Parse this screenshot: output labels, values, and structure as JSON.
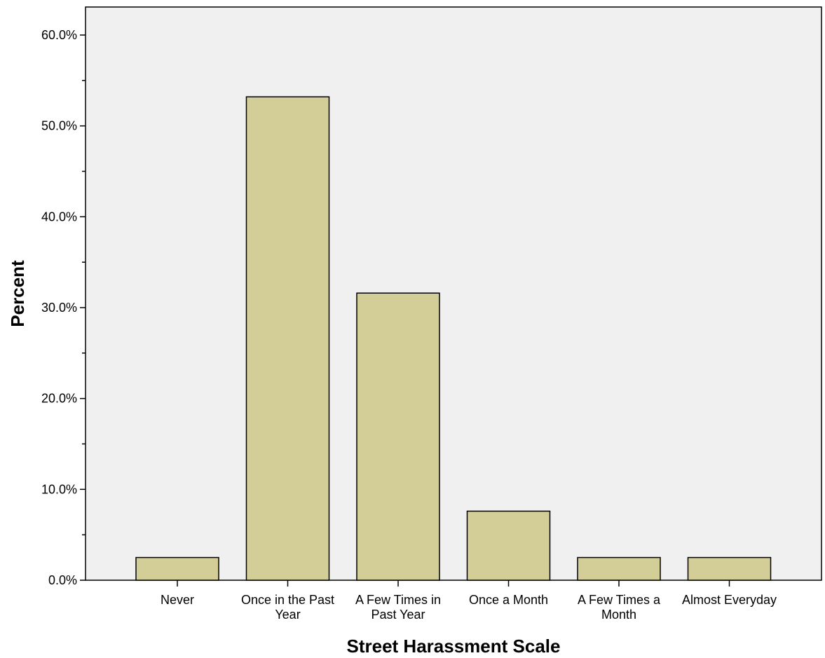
{
  "chart_data": {
    "type": "bar",
    "title": "",
    "xlabel": "Street Harassment Scale",
    "ylabel": "Percent",
    "categories": [
      [
        "Never"
      ],
      [
        "Once in the Past",
        "Year"
      ],
      [
        "A Few  Times in",
        "Past Year"
      ],
      [
        "Once a Month"
      ],
      [
        "A Few  Times a",
        "Month"
      ],
      [
        "Almost Everyday"
      ]
    ],
    "values": [
      2.5,
      53.2,
      31.6,
      7.6,
      2.5,
      2.5
    ],
    "ylim": [
      0,
      60
    ],
    "yticks": [
      0,
      10,
      20,
      30,
      40,
      50,
      60
    ],
    "ytick_labels": [
      "0.0%",
      "10.0%",
      "20.0%",
      "30.0%",
      "40.0%",
      "50.0%",
      "60.0%"
    ],
    "grid": false,
    "colors": {
      "bar_fill": "#d3ce98",
      "bar_stroke": "#000000",
      "plot_bg": "#f0f0f0"
    }
  }
}
